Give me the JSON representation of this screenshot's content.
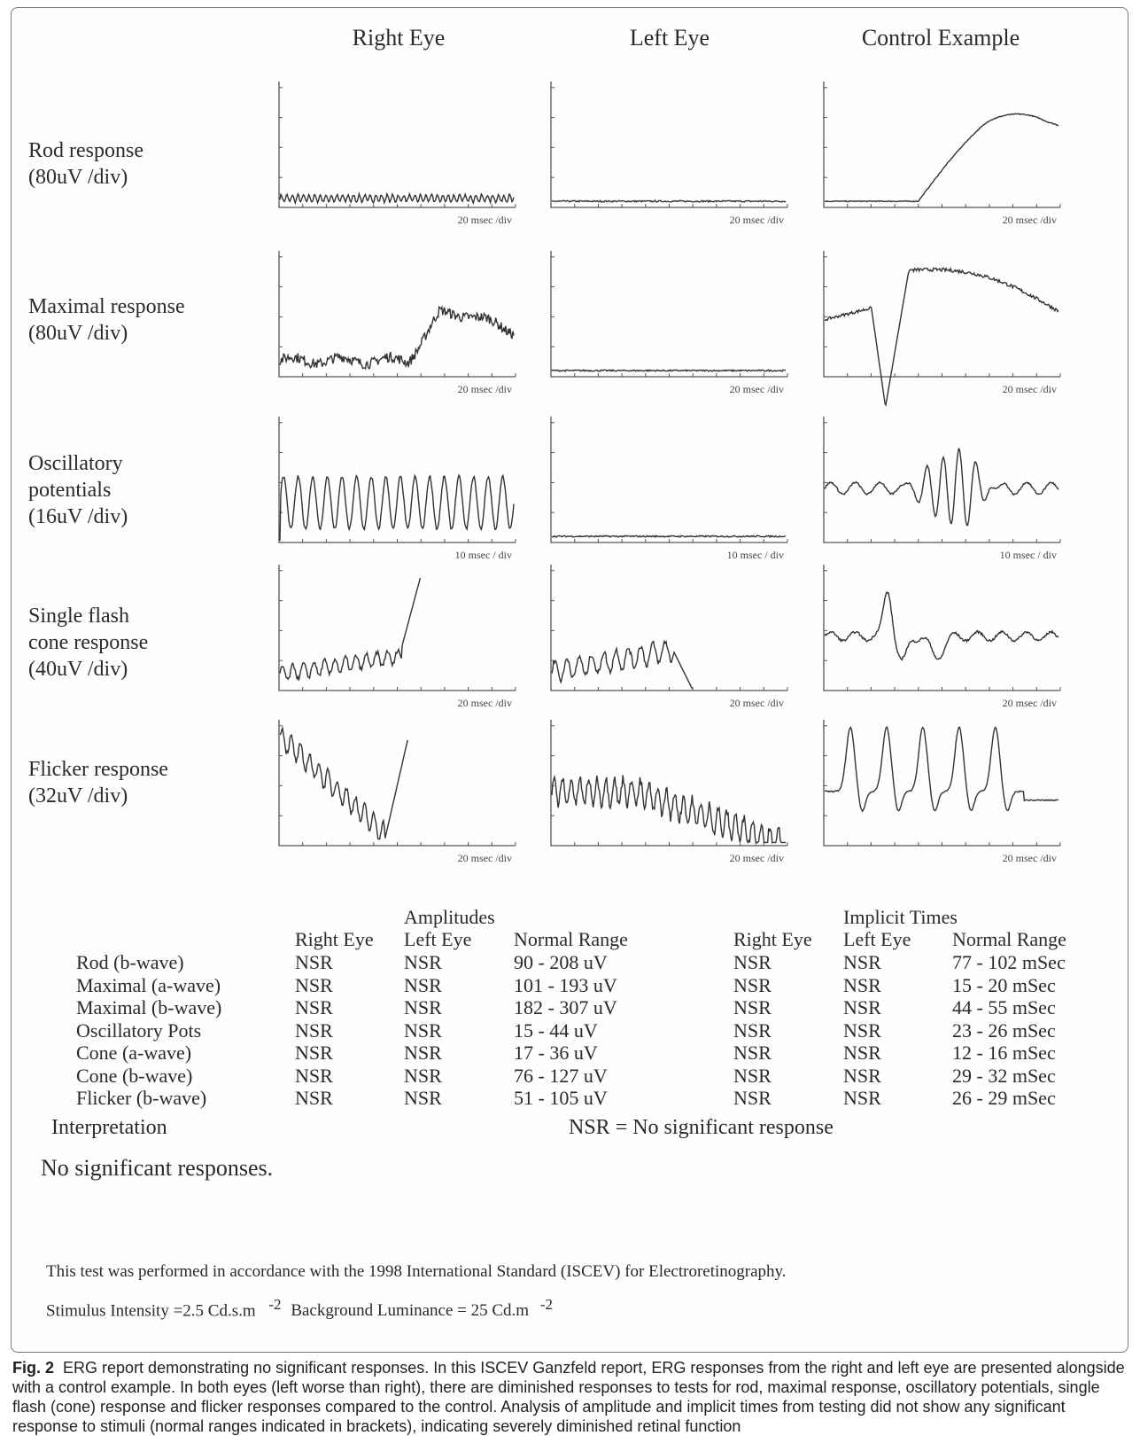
{
  "column_headers": [
    "Right Eye",
    "Left Eye",
    "Control Example"
  ],
  "row_labels": [
    "Rod response\n(80uV /div)",
    "Maximal response\n(80uV /div)",
    "Oscillatory\npotentials\n(16uV /div)",
    "Single flash\ncone response\n(40uV /div)",
    "Flicker response\n(32uV /div)"
  ],
  "time_scales": [
    "20 msec /div",
    "20 msec /div",
    "10 msec / div",
    "20 msec /div",
    "20 msec /div"
  ],
  "trace_color": "#333333",
  "chart_data": {
    "type": "line",
    "description_axes": "ERG waveform traces; y in response units, x in divisions",
    "traces": [
      {
        "row": "Rod response",
        "column": "Right Eye",
        "style": "noise",
        "base": 0.25,
        "amp": 0.15,
        "cycles": 42
      },
      {
        "row": "Rod response",
        "column": "Left Eye",
        "style": "flat",
        "base": 0.15
      },
      {
        "row": "Rod response",
        "column": "Control Example",
        "style": "hump",
        "base": 0.15,
        "peak": 3.5
      },
      {
        "row": "Maximal response",
        "column": "Right Eye",
        "style": "late-rise",
        "base": 0.5,
        "peak": 2.0
      },
      {
        "row": "Maximal response",
        "column": "Left Eye",
        "style": "flat",
        "base": 0.6
      },
      {
        "row": "Maximal response",
        "column": "Control Example",
        "style": "a-b-wave",
        "trough": -1.5,
        "peak": 4.0
      },
      {
        "row": "Oscillatory potentials",
        "column": "Right Eye",
        "style": "sine",
        "cycles": 16,
        "amp": 0.9,
        "base": 1.3
      },
      {
        "row": "Oscillatory potentials",
        "column": "Left Eye",
        "style": "flat",
        "base": 0.4
      },
      {
        "row": "Oscillatory potentials",
        "column": "Control Example",
        "style": "op-burst",
        "base": 1.8
      },
      {
        "row": "Single flash cone response",
        "column": "Right Eye",
        "style": "rising-noise",
        "base": 0.5,
        "end": 3.7
      },
      {
        "row": "Single flash cone response",
        "column": "Left Eye",
        "style": "truncated-noise",
        "base": 0.5
      },
      {
        "row": "Single flash cone response",
        "column": "Control Example",
        "style": "cone",
        "base": 1.8,
        "peak": 3.2
      },
      {
        "row": "Flicker response",
        "column": "Right Eye",
        "style": "descending",
        "start": 3.8,
        "end": 0.1
      },
      {
        "row": "Flicker response",
        "column": "Left Eye",
        "style": "decay-noise",
        "start": 2.0
      },
      {
        "row": "Flicker response",
        "column": "Control Example",
        "style": "flicker",
        "base": 1.8,
        "peaks": 5
      }
    ]
  },
  "table": {
    "amplitudes_title": "Amplitudes",
    "implicit_title": "Implicit Times",
    "columns": [
      "Right Eye",
      "Left Eye",
      "Normal Range"
    ],
    "tests": [
      "Rod (b-wave)",
      "Maximal (a-wave)",
      "Maximal (b-wave)",
      "Oscillatory Pots",
      "Cone (a-wave)",
      "Cone (b-wave)",
      "Flicker (b-wave)"
    ],
    "amp_right": [
      "NSR",
      "NSR",
      "NSR",
      "NSR",
      "NSR",
      "NSR",
      "NSR"
    ],
    "amp_left": [
      "NSR",
      "NSR",
      "NSR",
      "NSR",
      "NSR",
      "NSR",
      "NSR"
    ],
    "amp_range": [
      "90 - 208 uV",
      "101 - 193 uV",
      "182 - 307 uV",
      "15 - 44 uV",
      "17 - 36 uV",
      "76 - 127 uV",
      "51 - 105 uV"
    ],
    "imp_right": [
      "NSR",
      "NSR",
      "NSR",
      "NSR",
      "NSR",
      "NSR",
      "NSR"
    ],
    "imp_left": [
      "NSR",
      "NSR",
      "NSR",
      "NSR",
      "NSR",
      "NSR",
      "NSR"
    ],
    "imp_range": [
      "77 - 102 mSec",
      "15 - 20 mSec",
      "44 - 55 mSec",
      "23 - 26 mSec",
      "12 - 16 mSec",
      "29 - 32 mSec",
      "26 - 29 mSec"
    ]
  },
  "interpretation_label": "Interpretation",
  "nsr_legend": "NSR = No significant response",
  "interpretation_text": "No significant responses.",
  "standard_note": "This test was performed in accordance with the 1998 International Standard (ISCEV) for Electroretinography.",
  "stimulus_text": "Stimulus Intensity =2.5 Cd.s.m",
  "stimulus_exp": "-2",
  "background_text": "Background Luminance = 25 Cd.m",
  "background_exp": "-2",
  "caption_figno": "Fig. 2",
  "caption_text": "ERG report demonstrating no significant responses. In this ISCEV Ganzfeld report, ERG responses from the right and left eye are presented alongside with a control example. In both eyes (left worse than right), there are diminished responses to tests for rod, maximal response, oscillatory potentials, single flash (cone) response and flicker responses compared to the control. Analysis of amplitude and implicit times from testing did not show any significant response to stimuli (normal ranges indicated in brackets), indicating severely diminished retinal function"
}
